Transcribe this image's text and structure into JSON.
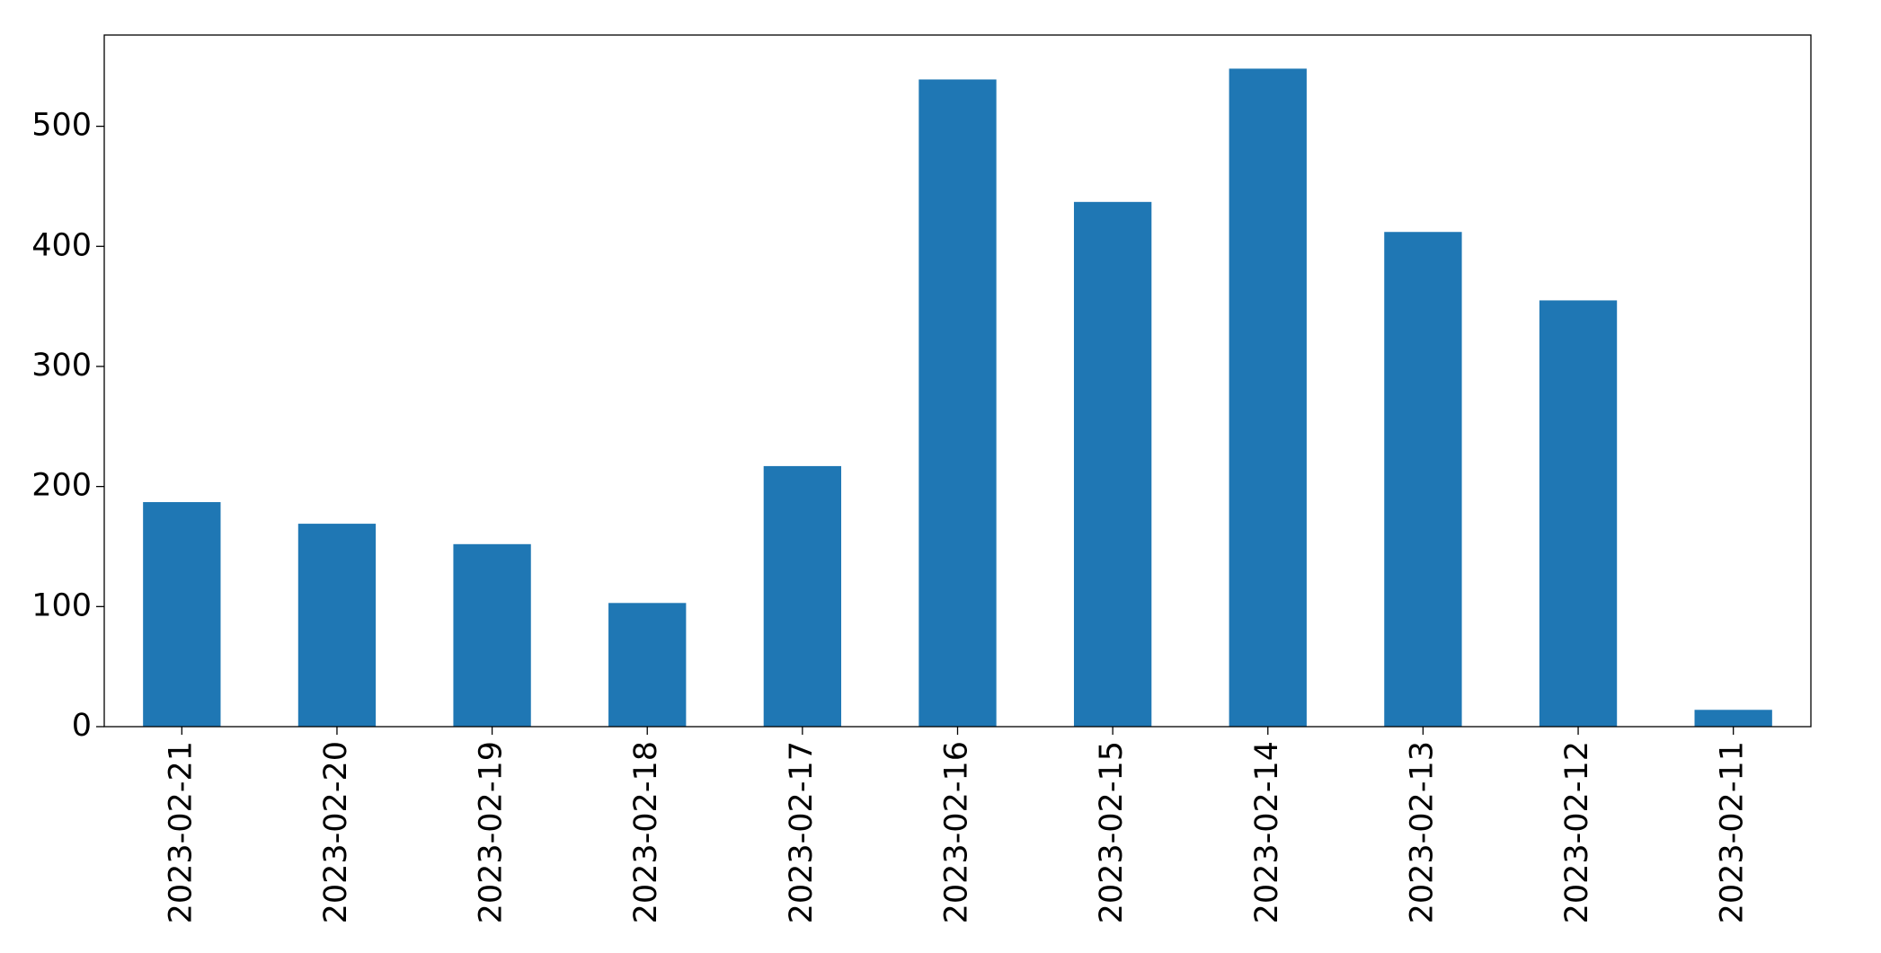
{
  "chart_data": {
    "type": "bar",
    "categories": [
      "2023-02-21",
      "2023-02-20",
      "2023-02-19",
      "2023-02-18",
      "2023-02-17",
      "2023-02-16",
      "2023-02-15",
      "2023-02-14",
      "2023-02-13",
      "2023-02-12",
      "2023-02-11"
    ],
    "values": [
      187,
      169,
      152,
      103,
      217,
      539,
      437,
      548,
      412,
      355,
      14
    ],
    "color": "#1f77b4",
    "ylim": [
      0,
      576
    ],
    "yticks": [
      0,
      100,
      200,
      300,
      400,
      500
    ],
    "grid": false
  }
}
